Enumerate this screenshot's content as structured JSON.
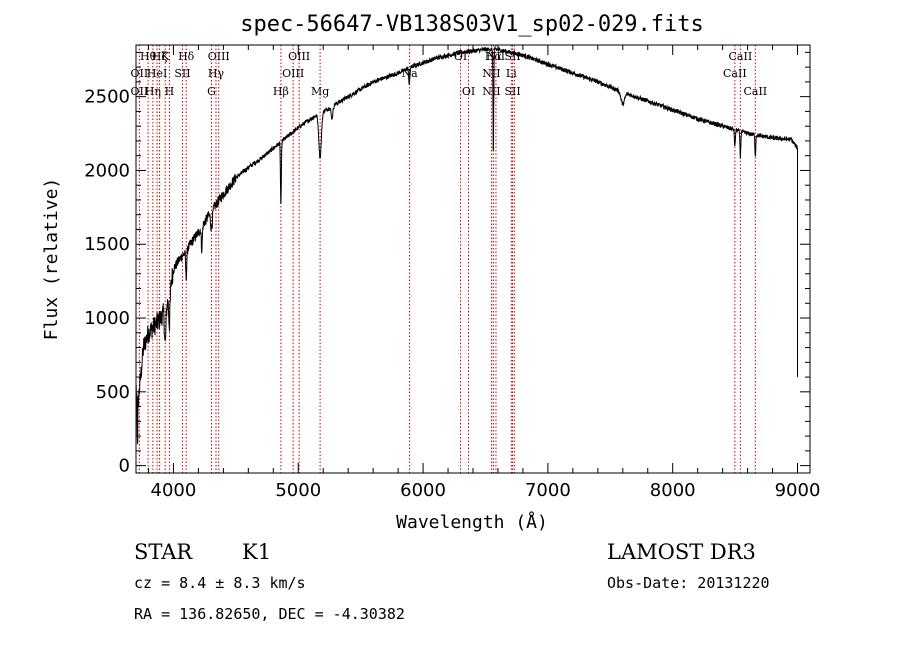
{
  "chart_data": {
    "type": "line",
    "title": "spec-56647-VB138S03V1_sp02-029.fits",
    "xlabel": "Wavelength (Å)",
    "ylabel": "Flux (relative)",
    "xlim": [
      3700,
      9100
    ],
    "ylim": [
      -50,
      2850
    ],
    "x_ticks": [
      4000,
      5000,
      6000,
      7000,
      8000,
      9000
    ],
    "y_ticks": [
      0,
      500,
      1000,
      1500,
      2000,
      2500
    ],
    "spectrum_anchors": [
      [
        3700,
        350
      ],
      [
        3720,
        450
      ],
      [
        3760,
        800
      ],
      [
        3800,
        900
      ],
      [
        3850,
        950
      ],
      [
        3900,
        1000
      ],
      [
        3950,
        1100
      ],
      [
        4000,
        1330
      ],
      [
        4050,
        1400
      ],
      [
        4100,
        1450
      ],
      [
        4150,
        1520
      ],
      [
        4200,
        1580
      ],
      [
        4300,
        1720
      ],
      [
        4400,
        1840
      ],
      [
        4500,
        1950
      ],
      [
        4600,
        2020
      ],
      [
        4700,
        2080
      ],
      [
        4800,
        2150
      ],
      [
        4900,
        2220
      ],
      [
        5000,
        2290
      ],
      [
        5100,
        2350
      ],
      [
        5200,
        2400
      ],
      [
        5300,
        2450
      ],
      [
        5400,
        2500
      ],
      [
        5500,
        2550
      ],
      [
        5600,
        2600
      ],
      [
        5700,
        2630
      ],
      [
        5800,
        2660
      ],
      [
        5900,
        2700
      ],
      [
        6000,
        2730
      ],
      [
        6100,
        2760
      ],
      [
        6200,
        2780
      ],
      [
        6300,
        2800
      ],
      [
        6400,
        2810
      ],
      [
        6500,
        2820
      ],
      [
        6600,
        2820
      ],
      [
        6700,
        2800
      ],
      [
        6800,
        2780
      ],
      [
        6900,
        2750
      ],
      [
        7000,
        2720
      ],
      [
        7200,
        2660
      ],
      [
        7400,
        2600
      ],
      [
        7600,
        2530
      ],
      [
        7800,
        2470
      ],
      [
        8000,
        2410
      ],
      [
        8200,
        2350
      ],
      [
        8400,
        2300
      ],
      [
        8600,
        2250
      ],
      [
        8800,
        2220
      ],
      [
        8950,
        2210
      ],
      [
        9000,
        2150
      ]
    ],
    "absorption_features": [
      [
        3934,
        250,
        8
      ],
      [
        3968,
        220,
        8
      ],
      [
        4102,
        180,
        6
      ],
      [
        4227,
        150,
        6
      ],
      [
        4305,
        120,
        10
      ],
      [
        4861,
        430,
        5
      ],
      [
        5175,
        300,
        14
      ],
      [
        5270,
        80,
        10
      ],
      [
        5890,
        120,
        6
      ],
      [
        6563,
        720,
        4
      ],
      [
        7600,
        80,
        20
      ],
      [
        8498,
        120,
        5
      ],
      [
        8542,
        170,
        5
      ],
      [
        8662,
        140,
        5
      ]
    ],
    "line_markers": [
      {
        "wavelength": 3727,
        "row1": "",
        "row2": "OII",
        "row3": "OII"
      },
      {
        "wavelength": 3797,
        "row1": "Hθ",
        "row2": "",
        "row3": ""
      },
      {
        "wavelength": 3835,
        "row1": "",
        "row2": "",
        "row3": "Hη"
      },
      {
        "wavelength": 3869,
        "row1": "",
        "row2": "HeI",
        "row3": ""
      },
      {
        "wavelength": 3889,
        "row1": "Hζ",
        "row2": "",
        "row3": ""
      },
      {
        "wavelength": 3934,
        "row1": "K",
        "row2": "",
        "row3": ""
      },
      {
        "wavelength": 3968,
        "row1": "",
        "row2": "",
        "row3": "H"
      },
      {
        "wavelength": 4072,
        "row1": "",
        "row2": "SII",
        "row3": ""
      },
      {
        "wavelength": 4102,
        "row1": "Hδ",
        "row2": "",
        "row3": ""
      },
      {
        "wavelength": 4305,
        "row1": "",
        "row2": "",
        "row3": "G"
      },
      {
        "wavelength": 4341,
        "row1": "",
        "row2": "Hγ",
        "row3": ""
      },
      {
        "wavelength": 4363,
        "row1": "OIII",
        "row2": "",
        "row3": ""
      },
      {
        "wavelength": 4861,
        "row1": "",
        "row2": "",
        "row3": "Hβ"
      },
      {
        "wavelength": 4959,
        "row1": "",
        "row2": "OIII",
        "row3": ""
      },
      {
        "wavelength": 5007,
        "row1": "OIII",
        "row2": "",
        "row3": ""
      },
      {
        "wavelength": 5175,
        "row1": "",
        "row2": "",
        "row3": "Mg"
      },
      {
        "wavelength": 5892,
        "row1": "",
        "row2": "Na",
        "row3": ""
      },
      {
        "wavelength": 6300,
        "row1": "OI",
        "row2": "",
        "row3": ""
      },
      {
        "wavelength": 6364,
        "row1": "",
        "row2": "",
        "row3": "OI"
      },
      {
        "wavelength": 6548,
        "row1": "",
        "row2": "NII",
        "row3": "NII"
      },
      {
        "wavelength": 6563,
        "row1": "Hα",
        "row2": "",
        "row3": ""
      },
      {
        "wavelength": 6584,
        "row1": "NII",
        "row2": "",
        "row3": ""
      },
      {
        "wavelength": 6707,
        "row1": "",
        "row2": "Li",
        "row3": ""
      },
      {
        "wavelength": 6717,
        "row1": "SII",
        "row2": "",
        "row3": "SII"
      },
      {
        "wavelength": 6731,
        "row1": "",
        "row2": "",
        "row3": ""
      },
      {
        "wavelength": 8498,
        "row1": "",
        "row2": "CaII",
        "row3": ""
      },
      {
        "wavelength": 8542,
        "row1": "CaII",
        "row2": "",
        "row3": ""
      },
      {
        "wavelength": 8662,
        "row1": "",
        "row2": "",
        "row3": "CaII"
      }
    ],
    "info": {
      "object_class": "STAR",
      "subclass": "K1",
      "survey": "LAMOST DR3",
      "cz": "cz = 8.4 ± 8.3 km/s",
      "obs_date": "Obs-Date: 20131220",
      "coords": "RA = 136.82650, DEC =  -4.30382"
    },
    "colors": {
      "spectrum": "#000000",
      "marker": "#cc0000",
      "axis": "#000000"
    }
  }
}
